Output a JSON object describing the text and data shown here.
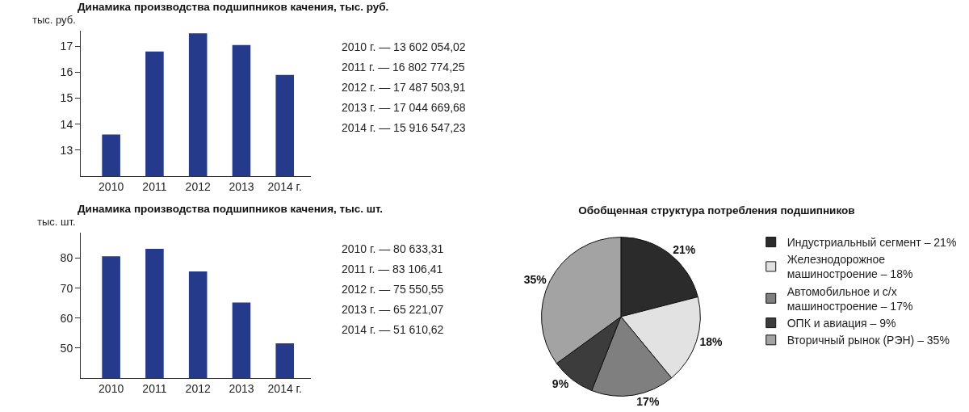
{
  "chart_data": [
    {
      "type": "bar",
      "title": "Динамика производства подшипников качения, тыс. руб.",
      "ylabel": "тыс. руб.",
      "categories": [
        "2010",
        "2011",
        "2012",
        "2013",
        "2014 г."
      ],
      "values": [
        13.6,
        16.8,
        17.5,
        17.05,
        15.9
      ],
      "color": "#253a8a",
      "ylim": [
        12,
        17.6
      ],
      "yticks": [
        13,
        14,
        15,
        16,
        17
      ],
      "grid": false,
      "legend": false,
      "annotations": [
        "2010 г. — 13 602 054,02",
        "2011 г. — 16 802 774,25",
        "2012 г. — 17 487 503,91",
        "2013 г. — 17 044 669,68",
        "2014 г. — 15 916 547,23"
      ]
    },
    {
      "type": "bar",
      "title": "Динамика производства подшипников качения, тыс. шт.",
      "ylabel": "тыс. шт.",
      "categories": [
        "2010",
        "2011",
        "2012",
        "2013",
        "2014 г."
      ],
      "values": [
        80.6,
        83.1,
        75.6,
        65.2,
        51.6
      ],
      "color": "#253a8a",
      "ylim": [
        40,
        88.5
      ],
      "yticks": [
        50,
        60,
        70,
        80
      ],
      "grid": false,
      "legend": false,
      "annotations": [
        "2010 г. — 80 633,31",
        "2011 г. — 83 106,41",
        "2012 г. — 75 550,55",
        "2013 г. — 65 221,07",
        "2014 г. — 51 610,62"
      ]
    },
    {
      "type": "pie",
      "title": "Обобщенная структура потребления подшипников",
      "categories": [
        "Индустриальный сегмент – 21%",
        "Железнодорожное машиностроение – 18%",
        "Автомобильное и с/х машиностроение – 17%",
        "ОПК и авиация – 9%",
        "Вторичный рынок (РЭН) – 35%"
      ],
      "values": [
        21,
        18,
        17,
        9,
        35
      ],
      "colors": [
        "#2b2b2b",
        "#e2e2e2",
        "#7f7f7f",
        "#3c3c3c",
        "#a3a3a3"
      ],
      "legend": "right",
      "value_labels": [
        "21%",
        "18%",
        "17%",
        "9%",
        "35%"
      ]
    }
  ]
}
